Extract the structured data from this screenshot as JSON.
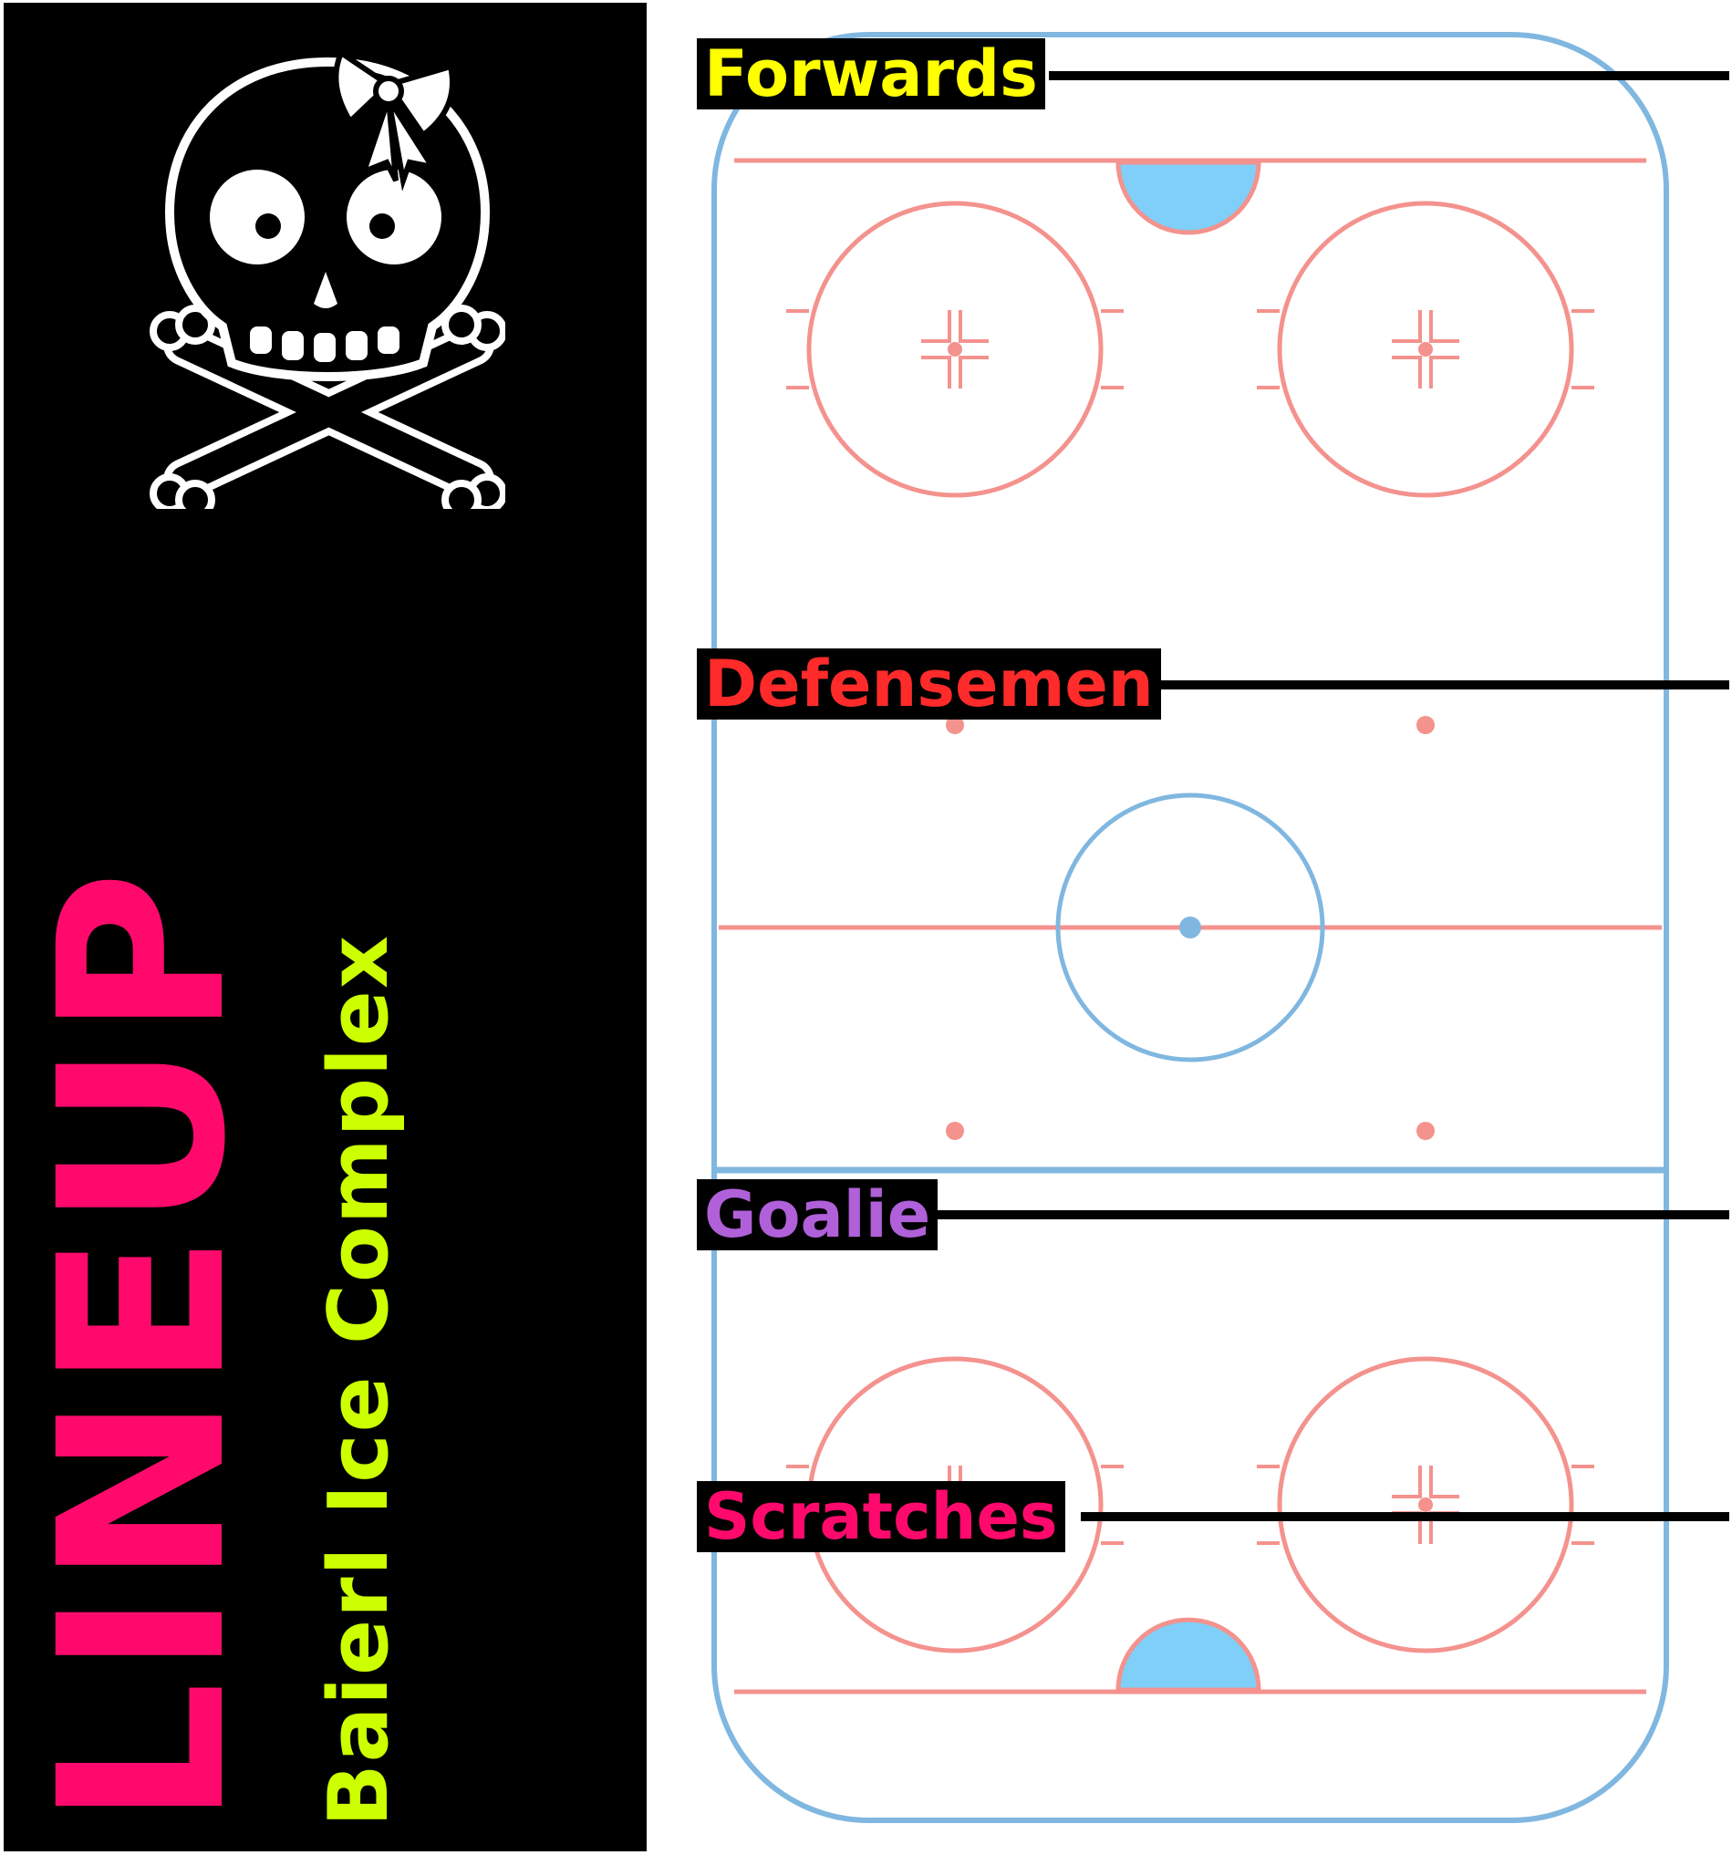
{
  "banner": {
    "title": "LINEUP",
    "subtitle": "Baierl Ice Complex",
    "background_color": "#000000",
    "title_color": "#ff0a6c",
    "subtitle_color": "#ccff00",
    "logo_icon": "skull-crossbones-bow-icon"
  },
  "rink": {
    "board_color": "#80b7e0",
    "line_color": "#f4928e",
    "crease_color": "#7fcff8"
  },
  "labels": [
    {
      "text": "Forwards",
      "color": "#ffff00"
    },
    {
      "text": "Defensemen",
      "color": "#ff2a2a"
    },
    {
      "text": "Goalie",
      "color": "#b060d8"
    },
    {
      "text": "Scratches",
      "color": "#ff0a6c"
    }
  ]
}
